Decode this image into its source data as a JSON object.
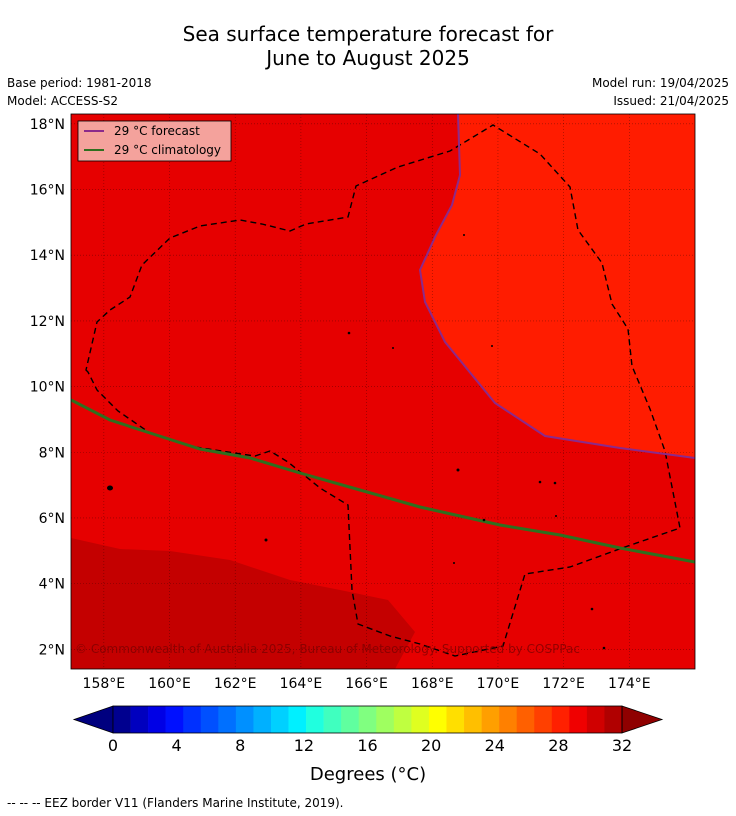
{
  "title_line1": "Sea surface temperature forecast for",
  "title_line2": "June to August 2025",
  "meta": {
    "base_period": "Base period: 1981-2018",
    "model": "Model: ACCESS-S2",
    "model_run": "Model run: 19/04/2025",
    "issued": "Issued: 21/04/2025"
  },
  "map": {
    "lon_range": [
      157,
      176
    ],
    "lat_range": [
      1.4,
      18.3
    ],
    "lat_ticks": [
      {
        "value": 18,
        "label": "18°N"
      },
      {
        "value": 16,
        "label": "16°N"
      },
      {
        "value": 14,
        "label": "14°N"
      },
      {
        "value": 12,
        "label": "12°N"
      },
      {
        "value": 10,
        "label": "10°N"
      },
      {
        "value": 8,
        "label": "8°N"
      },
      {
        "value": 6,
        "label": "6°N"
      },
      {
        "value": 4,
        "label": "4°N"
      },
      {
        "value": 2,
        "label": "2°N"
      }
    ],
    "lon_ticks": [
      {
        "value": 158,
        "label": "158°E"
      },
      {
        "value": 160,
        "label": "160°E"
      },
      {
        "value": 162,
        "label": "162°E"
      },
      {
        "value": 164,
        "label": "164°E"
      },
      {
        "value": 166,
        "label": "166°E"
      },
      {
        "value": 168,
        "label": "168°E"
      },
      {
        "value": 170,
        "label": "170°E"
      },
      {
        "value": 172,
        "label": "172°E"
      },
      {
        "value": 174,
        "label": "174°E"
      }
    ],
    "fill_colors": {
      "warm": "#ff1c00",
      "mid": "#e60000",
      "hot": "#c40000"
    },
    "forecast_line_color": "#8b2a8b",
    "climatology_line_color": "#2f6f1f",
    "legend": {
      "forecast_label": "29 °C  forecast",
      "climatology_label": "29 °C  climatology",
      "background": "#f4a29c"
    },
    "copyright": "© Commonwealth of Australia 2025, Bureau of Meteorology. Supported by COSPPac"
  },
  "colorbar": {
    "tick_labels": [
      "0",
      "4",
      "8",
      "12",
      "16",
      "20",
      "24",
      "28",
      "32"
    ],
    "title": "Degrees (°C)",
    "colors": [
      "#00008f",
      "#0000bf",
      "#0000e6",
      "#0010ff",
      "#0030ff",
      "#0050ff",
      "#0070ff",
      "#0090ff",
      "#00b0ff",
      "#00d0ff",
      "#00f0ff",
      "#20ffdf",
      "#40ffbf",
      "#60ff9f",
      "#80ff80",
      "#9fff60",
      "#bfff40",
      "#dfff20",
      "#ffff00",
      "#ffdf00",
      "#ffbf00",
      "#ff9f00",
      "#ff8000",
      "#ff6000",
      "#ff4000",
      "#ff2000",
      "#f00000",
      "#d00000",
      "#b00000"
    ],
    "under_color": "#00007f",
    "over_color": "#8f0000"
  },
  "footer": "--  --  -- EEZ border V11 (Flanders Marine Institute, 2019)."
}
